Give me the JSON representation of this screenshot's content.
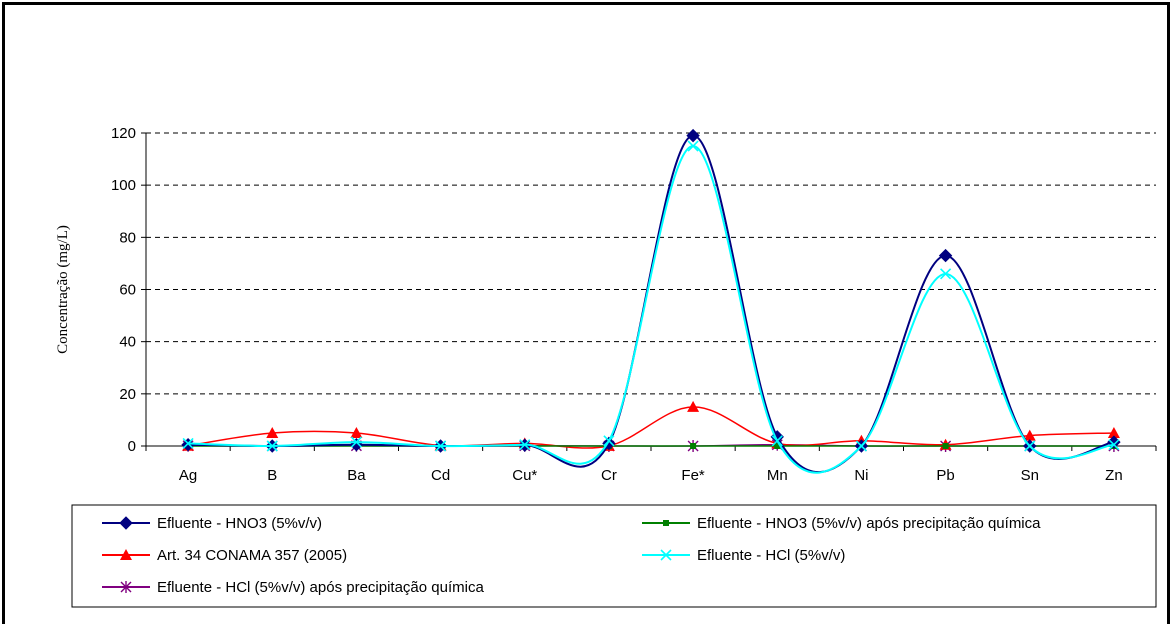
{
  "chart_data": {
    "type": "line",
    "title": "",
    "xlabel": "",
    "ylabel": "Concentração (mg/L)",
    "categories": [
      "Ag",
      "B",
      "Ba",
      "Cd",
      "Cu*",
      "Cr",
      "Fe*",
      "Mn",
      "Ni",
      "Pb",
      "Sn",
      "Zn"
    ],
    "ylim": [
      0,
      120
    ],
    "yticks": [
      0,
      20,
      40,
      60,
      80,
      100,
      120
    ],
    "grid": "horizontal dashed",
    "legend_position": "bottom",
    "series": [
      {
        "name": "Efluente - HNO3 (5%v/v)",
        "color": "#000080",
        "marker": "diamond",
        "values": [
          0.5,
          0,
          0.5,
          0,
          0.3,
          1,
          119,
          3.5,
          0,
          73,
          0,
          1.5
        ]
      },
      {
        "name": "Efluente - HNO3 (5%v/v) após precipitação química",
        "color": "#008000",
        "marker": "square",
        "values": [
          0,
          0,
          0,
          0,
          0,
          0,
          0,
          0,
          0,
          0,
          0,
          0
        ]
      },
      {
        "name": "Art. 34 CONAMA 357 (2005)",
        "color": "#FF0000",
        "marker": "triangle",
        "values": [
          0.1,
          5,
          5,
          0.2,
          1,
          0.05,
          15,
          1,
          2,
          0.5,
          4,
          5
        ]
      },
      {
        "name": "Efluente - HCl (5%v/v)",
        "color": "#00FFFF",
        "marker": "x",
        "values": [
          1,
          0,
          1.5,
          0,
          0.5,
          2,
          115,
          2,
          0,
          66,
          0,
          0.5
        ]
      },
      {
        "name": "Efluente - HCl (5%v/v) após precipitação química",
        "color": "#800080",
        "marker": "asterisk",
        "values": [
          0.1,
          0,
          0.1,
          0,
          0.1,
          0,
          0,
          0.5,
          0,
          0,
          0,
          0
        ]
      }
    ]
  }
}
